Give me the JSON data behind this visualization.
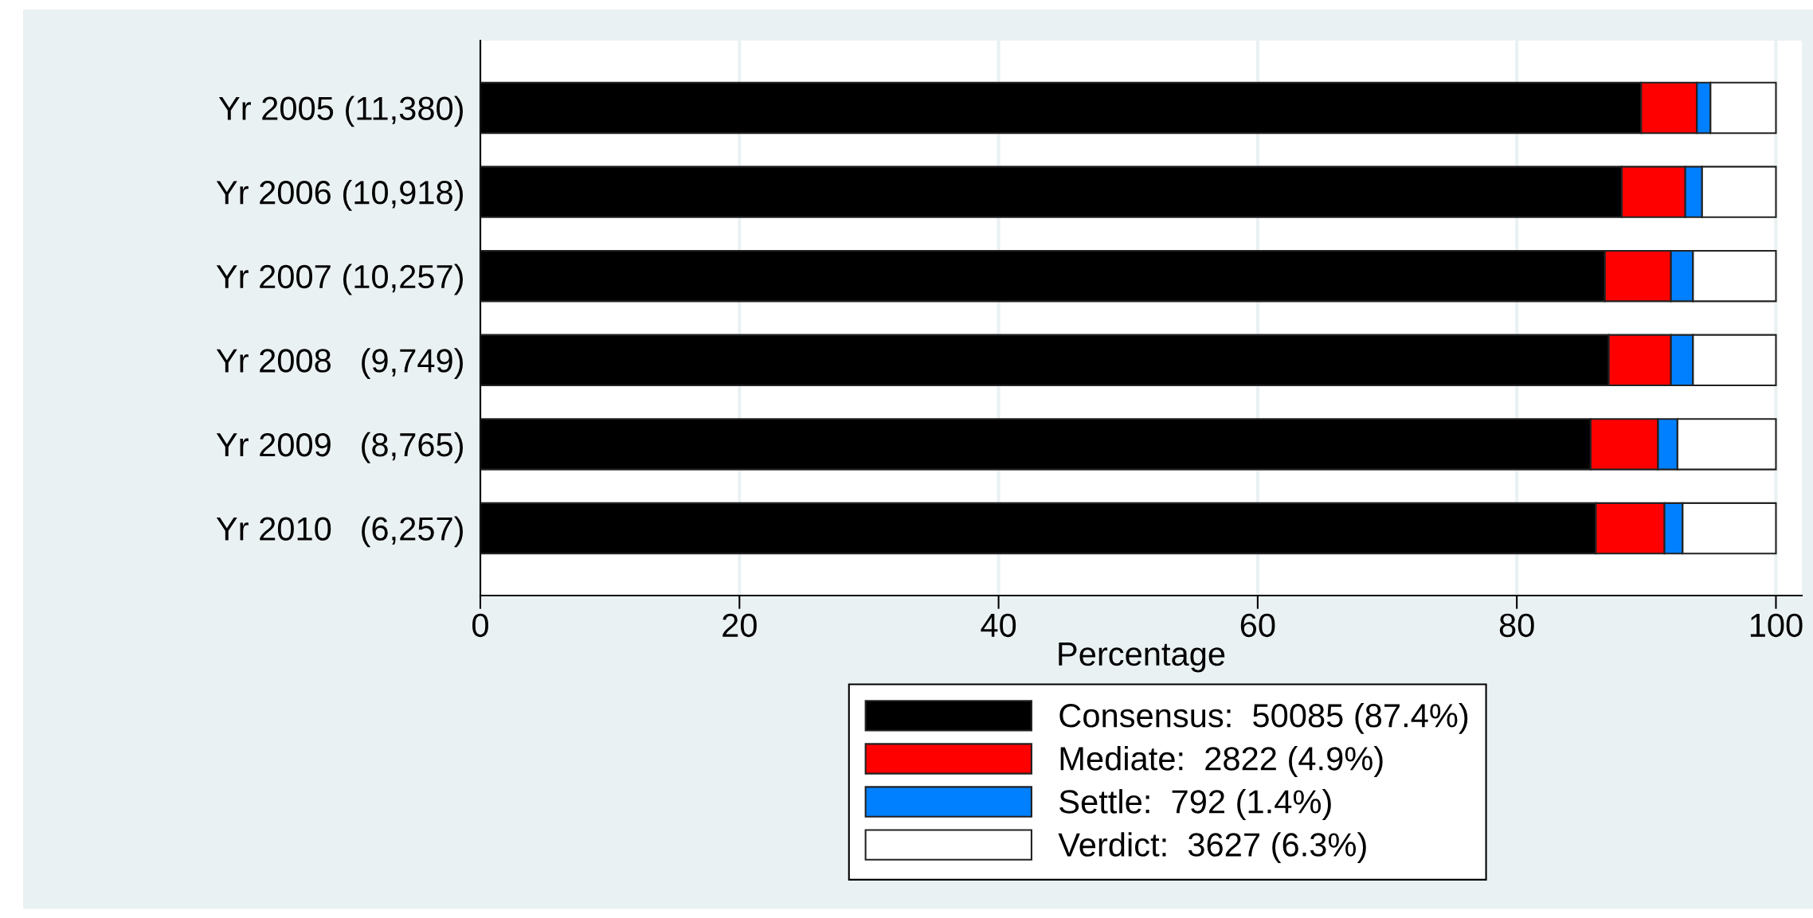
{
  "chart_data": {
    "type": "bar",
    "orientation": "horizontal",
    "stacked": true,
    "xlabel": "Percentage",
    "categories": [
      "Yr 2005 (11,380)",
      "Yr 2006 (10,918)",
      "Yr 2007 (10,257)",
      "Yr 2008   (9,749)",
      "Yr 2009   (8,765)",
      "Yr 2010   (6,257)"
    ],
    "series": [
      {
        "name": "Consensus:  50085 (87.4%)",
        "color": "#000000",
        "values": [
          89.6,
          88.1,
          86.8,
          87.1,
          85.7,
          86.1
        ]
      },
      {
        "name": "Mediate:  2822 (4.9%)",
        "color": "#ff0000",
        "values": [
          4.3,
          4.9,
          5.1,
          4.8,
          5.2,
          5.3
        ]
      },
      {
        "name": "Settle:  792 (1.4%)",
        "color": "#0080ff",
        "values": [
          1.05,
          1.3,
          1.7,
          1.7,
          1.5,
          1.4
        ]
      },
      {
        "name": "Verdict:  3627 (6.3%)",
        "color": "#ffffff",
        "values": [
          5.05,
          5.7,
          6.4,
          6.4,
          7.6,
          7.2
        ]
      }
    ],
    "xlim": [
      0,
      102
    ],
    "xticks": [
      0,
      20,
      40,
      60,
      80,
      100
    ],
    "grid": "x",
    "legend": "bottom"
  }
}
